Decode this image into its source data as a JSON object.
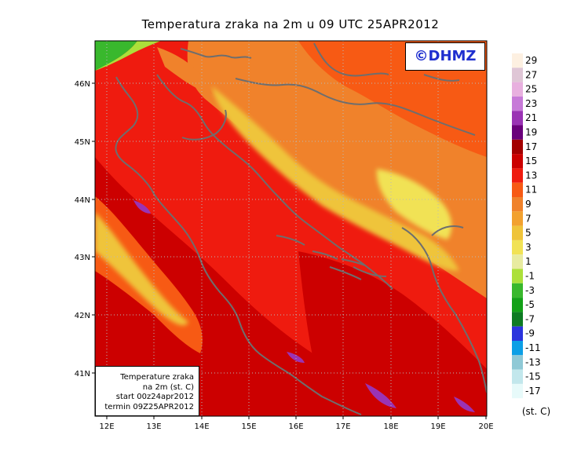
{
  "title": "Temperatura zraka na 2m u 09 UTC 25APR2012",
  "logo": "©DHMZ",
  "info": {
    "line1": "Temperature zraka",
    "line2": "na 2m (st. C)",
    "line3": "start 00z24apr2012",
    "line4": "termin 09Z25APR2012"
  },
  "latitude_ticks": [
    "46N",
    "45N",
    "44N",
    "43N",
    "42N",
    "41N"
  ],
  "longitude_ticks": [
    "12E",
    "13E",
    "14E",
    "15E",
    "16E",
    "17E",
    "18E",
    "19E",
    "20E"
  ],
  "colorbar": {
    "unit": "(st. C)",
    "labels": [
      "29",
      "27",
      "25",
      "23",
      "21",
      "19",
      "17",
      "15",
      "13",
      "11",
      "9",
      "7",
      "5",
      "3",
      "1",
      "-1",
      "-3",
      "-5",
      "-7",
      "-9",
      "-11",
      "-13",
      "-15",
      "-17"
    ],
    "colors": [
      "#fdf0e1",
      "#dfc6d6",
      "#e8b0df",
      "#c77ad8",
      "#9a33b4",
      "#6a007b",
      "#a30000",
      "#cc0000",
      "#ef1b0f",
      "#f75a14",
      "#f0822b",
      "#f2a12f",
      "#efc43a",
      "#f1e255",
      "#e8eba0",
      "#ace03a",
      "#39b82d",
      "#13a117",
      "#0e7b23",
      "#2b34dd",
      "#0c9fe6",
      "#8fc9d6",
      "#c2e7ec",
      "#e7fafa"
    ]
  },
  "map_colors": {
    "sea_warm": "#cc0000",
    "mid_warm": "#ef1b0f",
    "coast_land": "#f75a14",
    "interior": "#f0822b",
    "mountains": "#efc43a",
    "highlands": "#f1e255",
    "alps_cold": "#39b82d",
    "hot_spots": "#9a33b4",
    "coastline": "#6e6e6e"
  }
}
